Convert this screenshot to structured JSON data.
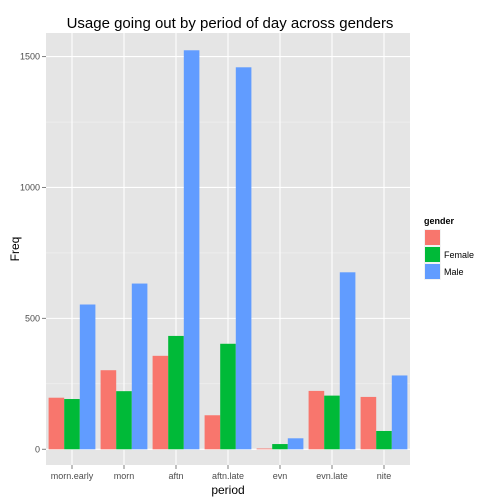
{
  "chart_data": {
    "type": "bar",
    "title": "Usage going out by period of day across genders",
    "xlabel": "period",
    "ylabel": "Freq",
    "categories": [
      "morn.early",
      "morn",
      "aftn",
      "aftn.late",
      "evn",
      "evn.late",
      "nite"
    ],
    "ylim": [
      -60,
      1590
    ],
    "yticks": [
      0,
      500,
      1000,
      1500
    ],
    "grid": true,
    "legend": {
      "title": "gender",
      "placement": "right",
      "entries": [
        {
          "label": "",
          "color": "#F8766D"
        },
        {
          "label": "Female",
          "color": "#00BA38"
        },
        {
          "label": "Male",
          "color": "#619CFF"
        }
      ]
    },
    "series": [
      {
        "label": "",
        "color": "#F8766D",
        "values": [
          197,
          302,
          357,
          130,
          3,
          223,
          200
        ]
      },
      {
        "label": "Female",
        "color": "#00BA38",
        "values": [
          192,
          222,
          433,
          403,
          20,
          205,
          70
        ]
      },
      {
        "label": "Male",
        "color": "#619CFF",
        "values": [
          553,
          633,
          1524,
          1459,
          42,
          676,
          282
        ]
      }
    ]
  }
}
